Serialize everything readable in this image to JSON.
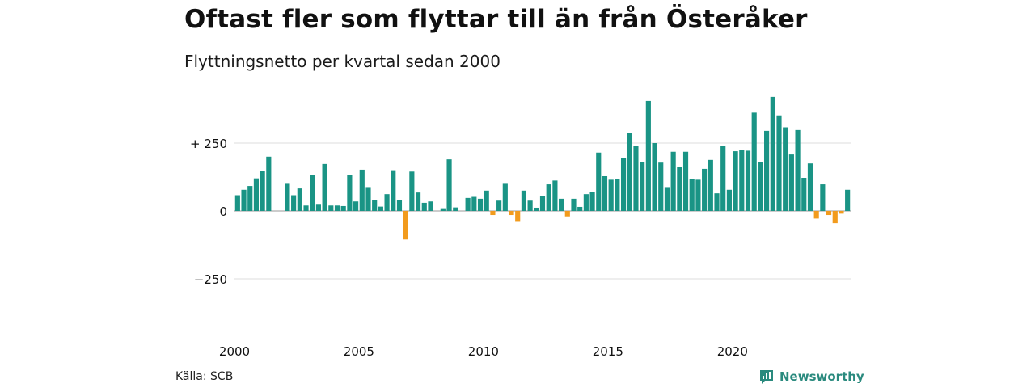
{
  "header": {
    "title": "Oftast fler som flyttar till än från Österåker",
    "subtitle": "Flyttningsnetto per kvartal sedan 2000"
  },
  "footer": {
    "source": "Källa: SCB",
    "brand": "Newsworthy"
  },
  "colors": {
    "positive": "#1a9485",
    "negative": "#f29b1d",
    "grid": "#dddddd",
    "brand": "#2a8a7e"
  },
  "chart_data": {
    "type": "bar",
    "x_start_year": 2000,
    "periods_per_year": 4,
    "values": [
      58,
      78,
      92,
      120,
      148,
      200,
      0,
      0,
      100,
      58,
      83,
      20,
      132,
      26,
      173,
      20,
      20,
      18,
      131,
      35,
      152,
      88,
      40,
      16,
      62,
      150,
      40,
      -105,
      145,
      68,
      30,
      35,
      0,
      10,
      190,
      13,
      0,
      48,
      52,
      45,
      75,
      -15,
      38,
      100,
      -15,
      -40,
      75,
      38,
      12,
      55,
      98,
      112,
      45,
      -20,
      45,
      15,
      62,
      70,
      215,
      128,
      115,
      118,
      195,
      288,
      240,
      180,
      405,
      250,
      178,
      88,
      218,
      162,
      218,
      118,
      115,
      155,
      188,
      65,
      240,
      78,
      220,
      225,
      222,
      362,
      180,
      295,
      420,
      352,
      308,
      208,
      298,
      122,
      175,
      -28,
      98,
      -15,
      -45,
      -10,
      78
    ],
    "ylim": [
      -420,
      420
    ],
    "y_ticks": [
      {
        "value": 250,
        "label": "+ 250"
      },
      {
        "value": 0,
        "label": "0"
      },
      {
        "value": -250,
        "label": "−250"
      }
    ],
    "x_ticks": [
      {
        "year": 2000,
        "label": "2000"
      },
      {
        "year": 2005,
        "label": "2005"
      },
      {
        "year": 2010,
        "label": "2010"
      },
      {
        "year": 2015,
        "label": "2015"
      },
      {
        "year": 2020,
        "label": "2020"
      }
    ],
    "grid": true,
    "legend": "none"
  }
}
